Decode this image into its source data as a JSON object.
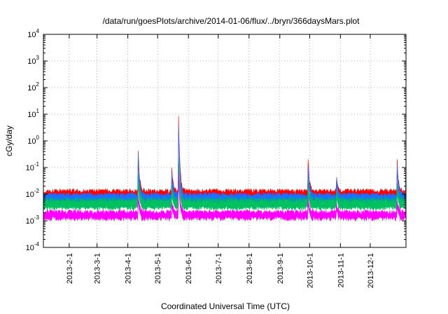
{
  "chart_data": {
    "type": "line",
    "title": "/data/run/goesPlots/archive/2014-01-06/flux/../bryn/366daysMars.plot",
    "xlabel": "Coordinated Universal Time (UTC)",
    "ylabel": "cGy/day",
    "yscale": "log",
    "ylim": [
      0.0001,
      10000
    ],
    "xlim": [
      "2013-01-06",
      "2014-01-06"
    ],
    "grid": true,
    "legend": "none",
    "x_ticks": [
      "2013-2-1",
      "2013-3-1",
      "2013-4-1",
      "2013-5-1",
      "2013-6-1",
      "2013-7-1",
      "2013-8-1",
      "2013-9-1",
      "2013-10-1",
      "2013-11-1",
      "2013-12-1"
    ],
    "y_ticks": [
      {
        "base": "10",
        "exp": "-4",
        "value": 0.0001
      },
      {
        "base": "10",
        "exp": "-3",
        "value": 0.001
      },
      {
        "base": "10",
        "exp": "-2",
        "value": 0.01
      },
      {
        "base": "10",
        "exp": "-1",
        "value": 0.1
      },
      {
        "base": "10",
        "exp": "0",
        "value": 1
      },
      {
        "base": "10",
        "exp": "1",
        "value": 10
      },
      {
        "base": "10",
        "exp": "2",
        "value": 100
      },
      {
        "base": "10",
        "exp": "3",
        "value": 1000
      },
      {
        "base": "10",
        "exp": "4",
        "value": 10000
      }
    ],
    "series": [
      {
        "color": "#ff0000",
        "baseline": 0.011,
        "events": [
          {
            "date": "2013-04-11",
            "peak": 1.6
          },
          {
            "date": "2013-05-15",
            "peak": 0.12
          },
          {
            "date": "2013-05-22",
            "peak": 10
          },
          {
            "date": "2013-09-29",
            "peak": 0.45
          },
          {
            "date": "2013-10-28",
            "peak": 0.05
          },
          {
            "date": "2013-12-28",
            "peak": 0.2
          },
          {
            "date": "2014-01-06",
            "peak": 0.25
          }
        ]
      },
      {
        "color": "#1e6fff",
        "baseline": 0.008,
        "events": [
          {
            "date": "2013-04-11",
            "peak": 0.9
          },
          {
            "date": "2013-05-15",
            "peak": 0.08
          },
          {
            "date": "2013-05-22",
            "peak": 5.5
          },
          {
            "date": "2013-09-29",
            "peak": 0.3
          },
          {
            "date": "2013-10-28",
            "peak": 0.035
          },
          {
            "date": "2013-12-28",
            "peak": 0.12
          },
          {
            "date": "2014-01-06",
            "peak": 0.16
          }
        ]
      },
      {
        "color": "#00a0a0",
        "baseline": 0.0055,
        "events": [
          {
            "date": "2013-04-11",
            "peak": 0.12
          },
          {
            "date": "2013-05-15",
            "peak": 0.03
          },
          {
            "date": "2013-05-22",
            "peak": 0.25
          },
          {
            "date": "2013-09-29",
            "peak": 0.05
          },
          {
            "date": "2013-10-28",
            "peak": 0.015
          },
          {
            "date": "2013-12-28",
            "peak": 0.03
          },
          {
            "date": "2014-01-06",
            "peak": 0.04
          }
        ]
      },
      {
        "color": "#00c060",
        "baseline": 0.0045,
        "events": [
          {
            "date": "2013-04-11",
            "peak": 0.05
          },
          {
            "date": "2013-05-15",
            "peak": 0.015
          },
          {
            "date": "2013-05-22",
            "peak": 0.1
          },
          {
            "date": "2013-09-29",
            "peak": 0.02
          },
          {
            "date": "2013-10-28",
            "peak": 0.01
          },
          {
            "date": "2013-12-28",
            "peak": 0.015
          },
          {
            "date": "2014-01-06",
            "peak": 0.02
          }
        ]
      },
      {
        "color": "#ff00ff",
        "baseline": 0.0018,
        "events": [
          {
            "date": "2013-04-11",
            "peak": 0.015
          },
          {
            "date": "2013-05-15",
            "peak": 0.006
          },
          {
            "date": "2013-05-22",
            "peak": 0.06
          },
          {
            "date": "2013-09-29",
            "peak": 0.01
          },
          {
            "date": "2013-10-28",
            "peak": 0.004
          },
          {
            "date": "2013-12-28",
            "peak": 0.005
          },
          {
            "date": "2014-01-06",
            "peak": 0.008
          }
        ]
      }
    ]
  }
}
